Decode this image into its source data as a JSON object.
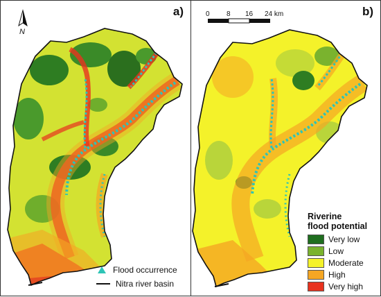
{
  "panel_a": {
    "label": "a)"
  },
  "panel_b": {
    "label": "b)"
  },
  "north": {
    "label": "N"
  },
  "scale": {
    "ticks": [
      "0",
      "8",
      "16"
    ],
    "last_tick": "24 km"
  },
  "legend_a": {
    "flood_occurrence": "Flood occurrence",
    "basin": "Nitra river basin"
  },
  "legend_b": {
    "title_1": "Riverine",
    "title_2": "flood potential",
    "classes": [
      {
        "label": "Very low",
        "color": "#1f6e1f"
      },
      {
        "label": "Low",
        "color": "#7ab32e"
      },
      {
        "label": "Moderate",
        "color": "#f4f22a"
      },
      {
        "label": "High",
        "color": "#f5a623"
      },
      {
        "label": "Very high",
        "color": "#e8321e"
      }
    ]
  },
  "colors": {
    "river_marker": "#2ec4b6",
    "outline": "#111111"
  }
}
